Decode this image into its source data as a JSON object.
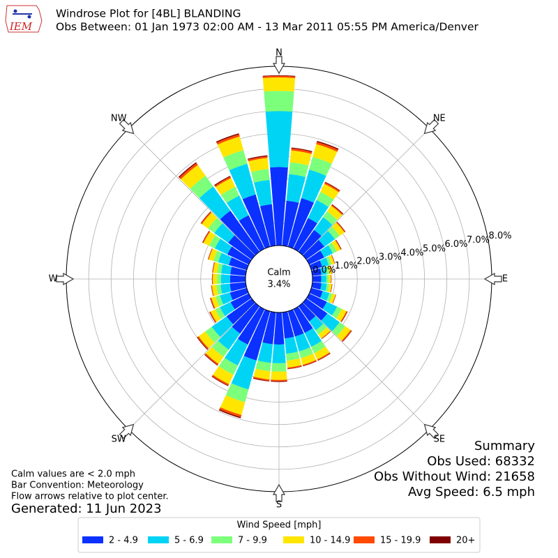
{
  "logo_text": "IEM",
  "chart_data": {
    "type": "windrose",
    "title": "Windrose Plot for [4BL] BLANDING",
    "subtitle": "Obs Between: 01 Jan 1973 02:00 AM - 13 Mar 2011 05:55 PM America/Denver",
    "directions": [
      0,
      10,
      20,
      30,
      40,
      50,
      60,
      70,
      80,
      90,
      100,
      110,
      120,
      130,
      140,
      150,
      160,
      170,
      180,
      190,
      200,
      210,
      220,
      230,
      240,
      250,
      260,
      270,
      280,
      290,
      300,
      310,
      320,
      330,
      340,
      350
    ],
    "compass": [
      "N",
      "NE",
      "E",
      "SE",
      "S",
      "SW",
      "W",
      "NW"
    ],
    "ylim": [
      0,
      8
    ],
    "yticks": [
      {
        "value": 0,
        "label": "0.0%"
      },
      {
        "value": 1,
        "label": "1.0%"
      },
      {
        "value": 2,
        "label": "2.0%"
      },
      {
        "value": 3,
        "label": "3.0%"
      },
      {
        "value": 4,
        "label": "4.0%"
      },
      {
        "value": 5,
        "label": "5.0%"
      },
      {
        "value": 6,
        "label": "6.0%"
      },
      {
        "value": 7,
        "label": "7.0%"
      },
      {
        "value": 8,
        "label": "8.0%"
      }
    ],
    "grid": true,
    "calm": {
      "label": "Calm",
      "value": 3.4,
      "value_label": "3.4%"
    },
    "legend_title": "Wind Speed [mph]",
    "series": [
      {
        "name": "2 - 4.9",
        "color": "#0a31ff",
        "values": [
          3.5,
          2.02,
          2.25,
          1.52,
          1.2,
          0.99,
          0.74,
          0.51,
          0.41,
          0.39,
          0.41,
          0.53,
          0.87,
          1.15,
          0.83,
          1.17,
          1.17,
          1.17,
          1.43,
          1.43,
          2.28,
          1.75,
          1.5,
          1.38,
          0.9,
          0.78,
          0.71,
          0.69,
          0.69,
          0.83,
          1.06,
          1.29,
          2.25,
          1.66,
          2.42,
          1.86
        ]
      },
      {
        "name": "5 - 6.9",
        "color": "#00d4f5",
        "values": [
          2.5,
          1.19,
          1.32,
          0.89,
          0.7,
          0.58,
          0.43,
          0.3,
          0.24,
          0.23,
          0.24,
          0.31,
          0.51,
          0.68,
          0.49,
          0.69,
          0.69,
          0.69,
          0.84,
          0.84,
          1.34,
          1.03,
          0.88,
          0.81,
          0.53,
          0.46,
          0.42,
          0.41,
          0.41,
          0.49,
          0.62,
          0.76,
          1.32,
          0.97,
          1.42,
          1.09
        ]
      },
      {
        "name": "7 - 9.9",
        "color": "#7cff7a",
        "values": [
          0.9,
          0.53,
          0.59,
          0.4,
          0.31,
          0.26,
          0.19,
          0.13,
          0.11,
          0.1,
          0.11,
          0.14,
          0.23,
          0.3,
          0.22,
          0.31,
          0.31,
          0.31,
          0.37,
          0.37,
          0.59,
          0.46,
          0.39,
          0.36,
          0.23,
          0.2,
          0.19,
          0.18,
          0.18,
          0.22,
          0.28,
          0.34,
          0.59,
          0.43,
          0.63,
          0.49
        ]
      },
      {
        "name": "10 - 14.9",
        "color": "#ffe600",
        "values": [
          0.6,
          0.53,
          0.59,
          0.4,
          0.31,
          0.26,
          0.19,
          0.13,
          0.11,
          0.1,
          0.11,
          0.14,
          0.23,
          0.3,
          0.22,
          0.31,
          0.31,
          0.31,
          0.37,
          0.37,
          0.59,
          0.46,
          0.39,
          0.36,
          0.23,
          0.2,
          0.19,
          0.18,
          0.18,
          0.22,
          0.28,
          0.34,
          0.59,
          0.43,
          0.63,
          0.49
        ]
      },
      {
        "name": "15 - 19.9",
        "color": "#ff4a00",
        "values": [
          0.07,
          0.09,
          0.1,
          0.07,
          0.05,
          0.04,
          0.03,
          0.02,
          0.02,
          0.02,
          0.02,
          0.02,
          0.04,
          0.05,
          0.03,
          0.05,
          0.05,
          0.05,
          0.06,
          0.06,
          0.1,
          0.07,
          0.06,
          0.06,
          0.04,
          0.04,
          0.03,
          0.03,
          0.03,
          0.03,
          0.04,
          0.05,
          0.1,
          0.07,
          0.1,
          0.08
        ]
      },
      {
        "name": "20+",
        "color": "#800000",
        "values": [
          0.03,
          0.04,
          0.05,
          0.03,
          0.03,
          0.02,
          0.02,
          0.01,
          0.01,
          0.01,
          0.01,
          0.01,
          0.02,
          0.02,
          0.01,
          0.02,
          0.02,
          0.02,
          0.03,
          0.03,
          0.05,
          0.03,
          0.03,
          0.03,
          0.02,
          0.02,
          0.01,
          0.01,
          0.01,
          0.01,
          0.02,
          0.02,
          0.05,
          0.04,
          0.05,
          0.04
        ]
      }
    ]
  },
  "summary": {
    "title": "Summary",
    "lines": [
      "Obs Used: 68332",
      "Obs Without Wind: 21658",
      "Avg Speed: 6.5 mph"
    ]
  },
  "notes": [
    "Calm values are < 2.0 mph",
    "Bar Convention: Meteorology",
    "Flow arrows relative to plot center."
  ],
  "generated": "Generated: 11 Jun 2023"
}
